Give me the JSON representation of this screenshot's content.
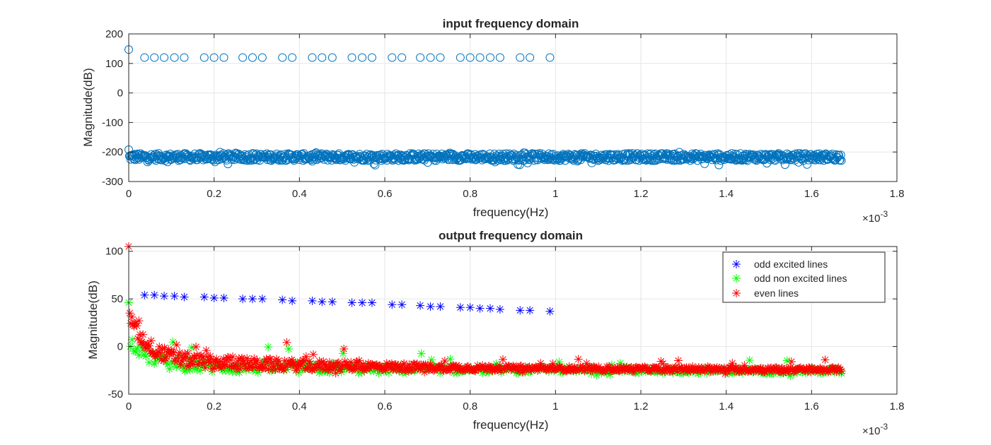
{
  "chart_data": [
    {
      "type": "scatter",
      "title": "input frequency domain",
      "xlabel": "frequency(Hz)",
      "ylabel": "Magnitude(dB)",
      "x_exponent_label": "×10",
      "x_exponent": "-3",
      "xlim": [
        0,
        1.8
      ],
      "ylim": [
        -300,
        200
      ],
      "xticks": [
        "0",
        "0.2",
        "0.4",
        "0.6",
        "0.8",
        "1",
        "1.2",
        "1.4",
        "1.6",
        "1.8"
      ],
      "yticks": [
        "-300",
        "-200",
        "-100",
        "0",
        "100",
        "200"
      ],
      "grid": true,
      "marker": "circle",
      "color": "#0072BD",
      "series": [
        {
          "x": [
            0,
            0.037,
            0.06,
            0.083,
            0.107,
            0.13,
            0.177,
            0.2,
            0.223,
            0.267,
            0.29,
            0.313,
            0.36,
            0.383,
            0.43,
            0.453,
            0.477,
            0.523,
            0.547,
            0.57,
            0.617,
            0.64,
            0.683,
            0.707,
            0.73,
            0.777,
            0.8,
            0.823,
            0.847,
            0.87,
            0.917,
            0.94,
            0.987
          ],
          "y": [
            147,
            120,
            120,
            120,
            120,
            120,
            120,
            120,
            120,
            120,
            120,
            120,
            120,
            120,
            120,
            120,
            120,
            120,
            120,
            120,
            120,
            120,
            120,
            120,
            120,
            120,
            120,
            120,
            120,
            120,
            120,
            120,
            120
          ]
        },
        {
          "x_range": [
            0,
            1.67
          ],
          "y_band": [
            -245,
            -200
          ],
          "y_start": -192
        }
      ]
    },
    {
      "type": "scatter",
      "title": "output frequency domain",
      "xlabel": "frequency(Hz)",
      "ylabel": "Magnitude(dB)",
      "x_exponent_label": "×10",
      "x_exponent": "-3",
      "xlim": [
        0,
        1.8
      ],
      "ylim": [
        -50,
        105
      ],
      "xticks": [
        "0",
        "0.2",
        "0.4",
        "0.6",
        "0.8",
        "1",
        "1.2",
        "1.4",
        "1.6",
        "1.8"
      ],
      "yticks": [
        "-50",
        "0",
        "50",
        "100"
      ],
      "grid": true,
      "marker": "asterisk",
      "legend_position": "top-right",
      "series": [
        {
          "name": "odd excited lines",
          "color": "#0000FF",
          "x": [
            0.037,
            0.06,
            0.083,
            0.107,
            0.13,
            0.177,
            0.2,
            0.223,
            0.267,
            0.29,
            0.313,
            0.36,
            0.383,
            0.43,
            0.453,
            0.477,
            0.523,
            0.547,
            0.57,
            0.617,
            0.64,
            0.683,
            0.707,
            0.73,
            0.777,
            0.8,
            0.823,
            0.847,
            0.87,
            0.917,
            0.94,
            0.987
          ],
          "y": [
            54,
            54,
            53,
            53,
            52,
            52,
            51,
            51,
            50,
            50,
            50,
            49,
            48,
            48,
            47,
            47,
            46,
            46,
            46,
            44,
            44,
            43,
            42,
            42,
            41,
            41,
            40,
            40,
            39,
            38,
            38,
            37
          ]
        },
        {
          "name": "odd non excited lines",
          "color": "#00FF00",
          "x_range": [
            0,
            1.67
          ],
          "y_start": 46,
          "y_end": -26
        },
        {
          "name": "even lines",
          "color": "#FF0000",
          "x_range": [
            0,
            1.67
          ],
          "y_start": 105,
          "y_end": -25
        }
      ]
    }
  ]
}
